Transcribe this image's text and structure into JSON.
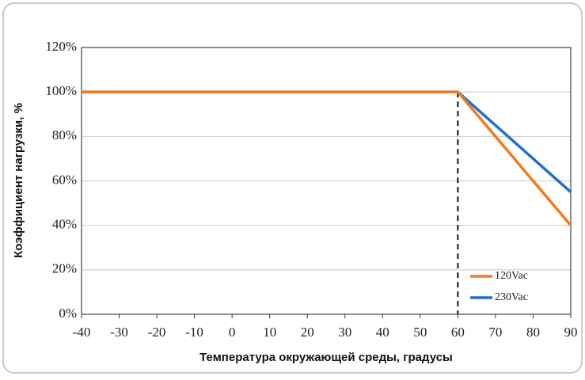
{
  "chart_data": {
    "type": "line",
    "xlabel": "Температура окружающей среды, градусы",
    "ylabel": "Коэффициент нагрузки, %",
    "x": [
      -40,
      60,
      90
    ],
    "series": [
      {
        "name": "120Vac",
        "color": "#f47a20",
        "values": [
          100,
          100,
          40
        ]
      },
      {
        "name": "230Vac",
        "color": "#1f6fd1",
        "values": [
          100,
          100,
          55
        ]
      }
    ],
    "xlim": [
      -40,
      90
    ],
    "xticks": [
      -40,
      -30,
      -20,
      -10,
      0,
      10,
      20,
      30,
      40,
      50,
      60,
      70,
      80,
      90
    ],
    "ylim": [
      0,
      120
    ],
    "yticks": [
      {
        "value": 0,
        "label": "0%"
      },
      {
        "value": 20,
        "label": "20%"
      },
      {
        "value": 40,
        "label": "40%"
      },
      {
        "value": 60,
        "label": "60%"
      },
      {
        "value": 80,
        "label": "80%"
      },
      {
        "value": 100,
        "label": "100%"
      },
      {
        "value": 120,
        "label": "120%"
      }
    ],
    "reference_line_x": 60,
    "grid": true,
    "legend": "lower right"
  }
}
